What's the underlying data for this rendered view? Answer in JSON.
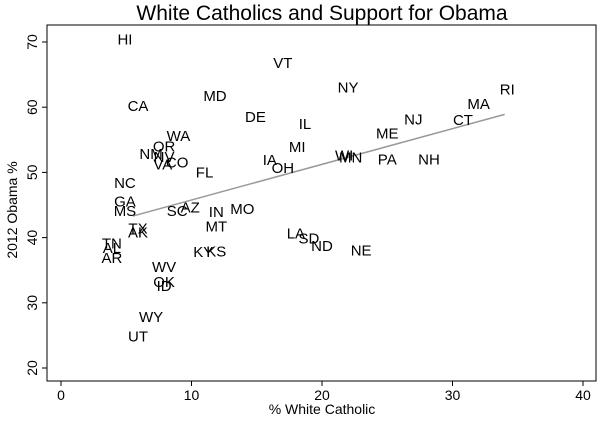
{
  "chart_data": {
    "type": "scatter",
    "title": "White Catholics and Support for Obama",
    "xlabel": "% White Catholic",
    "ylabel": "2012 Obama %",
    "xlim": [
      0,
      40
    ],
    "ylim": [
      20,
      70
    ],
    "xticks": [
      0,
      10,
      20,
      30,
      40
    ],
    "yticks": [
      20,
      30,
      40,
      50,
      60,
      70
    ],
    "grid": false,
    "legend": "none",
    "colors": {
      "label": "#000000",
      "fit_line": "#999999",
      "axis": "#000000"
    },
    "fit_line": {
      "x": [
        5.5,
        34
      ],
      "y": [
        43.3,
        58.9
      ]
    },
    "points": [
      {
        "label": "HI",
        "x": 4.9,
        "y": 70.4
      },
      {
        "label": "VT",
        "x": 17.0,
        "y": 66.8
      },
      {
        "label": "NY",
        "x": 22.0,
        "y": 63.0
      },
      {
        "label": "RI",
        "x": 34.2,
        "y": 62.7
      },
      {
        "label": "MD",
        "x": 11.8,
        "y": 61.7
      },
      {
        "label": "MA",
        "x": 32.0,
        "y": 60.5
      },
      {
        "label": "CA",
        "x": 5.9,
        "y": 60.2
      },
      {
        "label": "DE",
        "x": 14.9,
        "y": 58.5
      },
      {
        "label": "NJ",
        "x": 27.0,
        "y": 58.1
      },
      {
        "label": "CT",
        "x": 30.8,
        "y": 58.0
      },
      {
        "label": "IL",
        "x": 18.7,
        "y": 57.4
      },
      {
        "label": "ME",
        "x": 25.0,
        "y": 56.0
      },
      {
        "label": "WA",
        "x": 9.0,
        "y": 55.6
      },
      {
        "label": "OR",
        "x": 7.9,
        "y": 54.0
      },
      {
        "label": "MI",
        "x": 18.1,
        "y": 53.9
      },
      {
        "label": "NM",
        "x": 6.9,
        "y": 52.8
      },
      {
        "label": "NV",
        "x": 7.9,
        "y": 52.4
      },
      {
        "label": "WI",
        "x": 21.7,
        "y": 52.6
      },
      {
        "label": "MN",
        "x": 22.2,
        "y": 52.3
      },
      {
        "label": "PA",
        "x": 25.0,
        "y": 52.0
      },
      {
        "label": "NH",
        "x": 28.2,
        "y": 52.0
      },
      {
        "label": "IA",
        "x": 16.0,
        "y": 51.9
      },
      {
        "label": "CO",
        "x": 8.9,
        "y": 51.5
      },
      {
        "label": "VA",
        "x": 7.8,
        "y": 51.2
      },
      {
        "label": "OH",
        "x": 17.0,
        "y": 50.7
      },
      {
        "label": "FL",
        "x": 11.0,
        "y": 50.0
      },
      {
        "label": "NC",
        "x": 4.9,
        "y": 48.4
      },
      {
        "label": "GA",
        "x": 4.9,
        "y": 45.5
      },
      {
        "label": "MS",
        "x": 4.9,
        "y": 44.1
      },
      {
        "label": "MO",
        "x": 13.9,
        "y": 44.4
      },
      {
        "label": "AZ",
        "x": 9.9,
        "y": 44.6
      },
      {
        "label": "SC",
        "x": 8.9,
        "y": 44.1
      },
      {
        "label": "IN",
        "x": 11.9,
        "y": 43.9
      },
      {
        "label": "MT",
        "x": 11.9,
        "y": 41.7
      },
      {
        "label": "TX",
        "x": 5.9,
        "y": 41.4
      },
      {
        "label": "AK",
        "x": 5.9,
        "y": 40.8
      },
      {
        "label": "LA",
        "x": 18.0,
        "y": 40.6
      },
      {
        "label": "SD",
        "x": 19.0,
        "y": 39.9
      },
      {
        "label": "TN",
        "x": 3.9,
        "y": 39.1
      },
      {
        "label": "ND",
        "x": 20.0,
        "y": 38.7
      },
      {
        "label": "NE",
        "x": 23.0,
        "y": 38.0
      },
      {
        "label": "KS",
        "x": 11.9,
        "y": 37.9
      },
      {
        "label": "KY",
        "x": 10.9,
        "y": 37.8
      },
      {
        "label": "AL",
        "x": 3.9,
        "y": 38.4
      },
      {
        "label": "AR",
        "x": 3.9,
        "y": 36.9
      },
      {
        "label": "WV",
        "x": 7.9,
        "y": 35.5
      },
      {
        "label": "OK",
        "x": 7.9,
        "y": 33.2
      },
      {
        "label": "ID",
        "x": 7.9,
        "y": 32.6
      },
      {
        "label": "WY",
        "x": 6.9,
        "y": 27.8
      },
      {
        "label": "UT",
        "x": 5.9,
        "y": 24.8
      }
    ]
  }
}
